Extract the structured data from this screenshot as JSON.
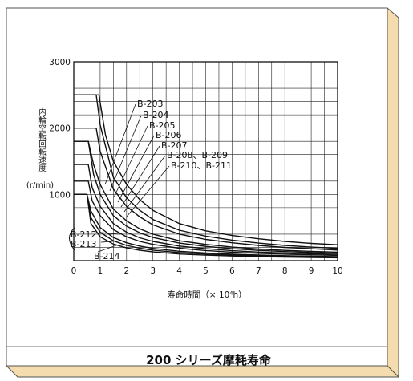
{
  "caption": "200 シリーズ摩耗寿命",
  "chart_data": {
    "type": "line",
    "title": "",
    "xlabel": "寿命時間（× 10⁴h）",
    "ylabel_chars": [
      "内",
      "輪",
      "空",
      "転",
      "回",
      "転",
      "速",
      "度"
    ],
    "yunit": "(r/min)",
    "xlim": [
      0,
      10
    ],
    "ylim": [
      0,
      3000
    ],
    "x_ticks": [
      "0",
      "1",
      "2",
      "3",
      "4",
      "5",
      "6",
      "7",
      "8",
      "9",
      "10"
    ],
    "y_ticks": [
      {
        "value": 1000,
        "label": "1000"
      },
      {
        "value": 2000,
        "label": "2000"
      },
      {
        "value": 3000,
        "label": "3000"
      }
    ],
    "grid": true,
    "series": [
      {
        "name": "B-203",
        "x": [
          0,
          0.95,
          1.2,
          1.5,
          2,
          2.5,
          3,
          4,
          5,
          6,
          7,
          8,
          9,
          10
        ],
        "y": [
          2500,
          2500,
          1900,
          1500,
          1150,
          920,
          760,
          560,
          450,
          380,
          330,
          290,
          260,
          240
        ]
      },
      {
        "name": "B-204",
        "x": [
          0,
          0.85,
          1.0,
          1.5,
          2,
          2.5,
          3,
          4,
          5,
          6,
          7,
          8,
          9,
          10
        ],
        "y": [
          2500,
          2500,
          2050,
          1260,
          950,
          760,
          620,
          460,
          370,
          310,
          265,
          230,
          205,
          185
        ]
      },
      {
        "name": "B-205",
        "x": [
          0,
          0.85,
          1.0,
          1.5,
          2,
          2.5,
          3,
          4,
          5,
          6,
          7,
          8,
          9,
          10
        ],
        "y": [
          2000,
          2000,
          1650,
          1080,
          820,
          660,
          540,
          400,
          320,
          270,
          230,
          200,
          180,
          160
        ]
      },
      {
        "name": "B-206",
        "x": [
          0,
          0.55,
          0.75,
          1.0,
          1.5,
          2,
          2.5,
          3,
          4,
          5,
          6,
          7,
          8,
          9,
          10
        ],
        "y": [
          1800,
          1800,
          1450,
          1150,
          780,
          600,
          480,
          400,
          300,
          245,
          205,
          175,
          155,
          140,
          128
        ]
      },
      {
        "name": "B-207",
        "x": [
          0,
          0.55,
          0.75,
          1.0,
          1.5,
          2,
          2.5,
          3,
          4,
          5,
          6,
          7,
          8,
          9,
          10
        ],
        "y": [
          1800,
          1800,
          1300,
          1000,
          680,
          520,
          420,
          350,
          265,
          215,
          180,
          155,
          137,
          123,
          112
        ]
      },
      {
        "name": "B-208、B-209",
        "x": [
          0,
          0.55,
          0.7,
          1.0,
          1.5,
          2,
          2.5,
          3,
          4,
          5,
          6,
          7,
          8,
          9,
          10
        ],
        "y": [
          1450,
          1450,
          1100,
          820,
          560,
          430,
          345,
          290,
          220,
          180,
          150,
          130,
          115,
          104,
          95
        ]
      },
      {
        "name": "B-210、B-211",
        "x": [
          0,
          0.55,
          0.7,
          1.0,
          1.5,
          2,
          2.5,
          3,
          4,
          5,
          6,
          7,
          8,
          9,
          10
        ],
        "y": [
          1200,
          1200,
          900,
          680,
          470,
          360,
          290,
          245,
          188,
          153,
          128,
          111,
          98,
          88,
          80
        ]
      },
      {
        "name": "B-212",
        "x": [
          0,
          0.5,
          0.65,
          1.0,
          1.5,
          2,
          2.5,
          3,
          4,
          5,
          6,
          7,
          8,
          9,
          10
        ],
        "y": [
          1000,
          1000,
          750,
          500,
          350,
          270,
          220,
          185,
          142,
          116,
          98,
          85,
          75,
          67,
          61
        ]
      },
      {
        "name": "B-213",
        "x": [
          0,
          0.5,
          0.65,
          1.0,
          1.5,
          2,
          2.5,
          3,
          4,
          5,
          6,
          7,
          8,
          9,
          10
        ],
        "y": [
          1000,
          1000,
          650,
          430,
          300,
          230,
          188,
          158,
          121,
          99,
          84,
          73,
          64,
          57,
          52
        ]
      },
      {
        "name": "B-214",
        "x": [
          0,
          0.5,
          0.65,
          1.0,
          1.5,
          2,
          2.5,
          3,
          4,
          5,
          6,
          7,
          8,
          9,
          10
        ],
        "y": [
          1000,
          1000,
          560,
          360,
          250,
          192,
          157,
          132,
          101,
          83,
          70,
          61,
          54,
          48,
          44
        ]
      }
    ],
    "labels_group_right": [
      "B-203",
      "B-204",
      "B-205",
      "B-206",
      "B-207",
      "B-208、B-209",
      "B-210、B-211"
    ],
    "labels_group_left": [
      "B-212",
      "B-213",
      "B-214"
    ]
  }
}
